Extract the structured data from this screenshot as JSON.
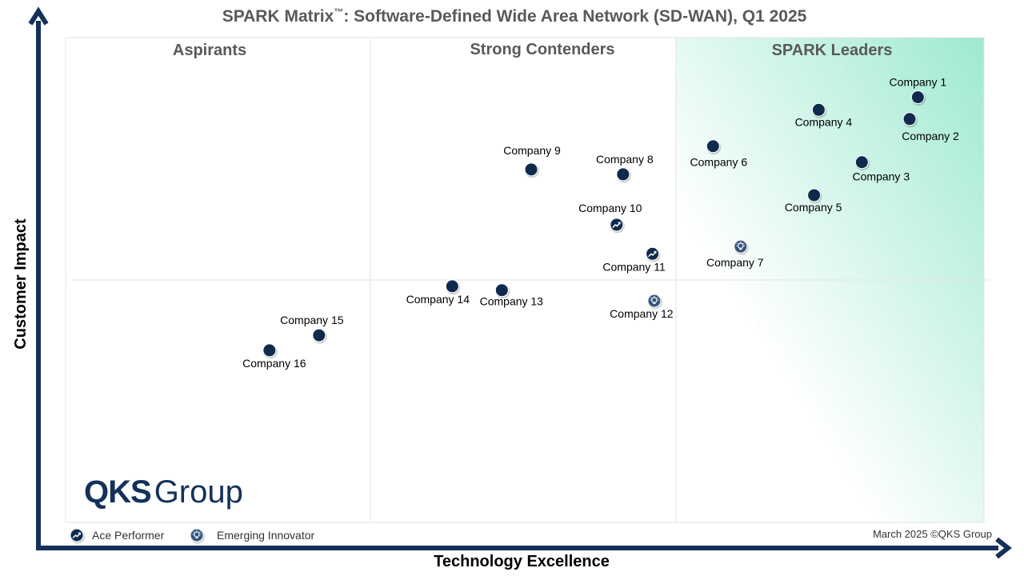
{
  "chart_data": {
    "type": "scatter",
    "title": "SPARK Matrix",
    "title_tm": "™",
    "title_rest": ": Software-Defined Wide Area Network (SD-WAN), Q1 2025",
    "xlabel": "Technology Excellence",
    "ylabel": "Customer Impact",
    "regions": [
      "Aspirants",
      "Strong Contenders",
      "SPARK Leaders"
    ],
    "xlim": [
      0,
      100
    ],
    "ylim": [
      0,
      100
    ],
    "points": [
      {
        "label": "Company 1",
        "x": 92.8,
        "y": 87.7,
        "marker": "dot"
      },
      {
        "label": "Company 2",
        "x": 91.9,
        "y": 83.2,
        "marker": "dot"
      },
      {
        "label": "Company 3",
        "x": 86.7,
        "y": 74.3,
        "marker": "dot"
      },
      {
        "label": "Company 4",
        "x": 82.0,
        "y": 85.1,
        "marker": "dot"
      },
      {
        "label": "Company 5",
        "x": 81.5,
        "y": 67.5,
        "marker": "dot"
      },
      {
        "label": "Company 6",
        "x": 70.5,
        "y": 77.6,
        "marker": "dot"
      },
      {
        "label": "Company 7",
        "x": 73.5,
        "y": 56.9,
        "marker": "emerging"
      },
      {
        "label": "Company 8",
        "x": 60.7,
        "y": 71.8,
        "marker": "dot"
      },
      {
        "label": "Company 9",
        "x": 50.7,
        "y": 72.8,
        "marker": "dot"
      },
      {
        "label": "Company 10",
        "x": 60.0,
        "y": 61.4,
        "marker": "ace"
      },
      {
        "label": "Company 11",
        "x": 63.9,
        "y": 55.4,
        "marker": "ace"
      },
      {
        "label": "Company 12",
        "x": 64.1,
        "y": 45.7,
        "marker": "emerging"
      },
      {
        "label": "Company 13",
        "x": 47.5,
        "y": 47.9,
        "marker": "dot"
      },
      {
        "label": "Company 14",
        "x": 42.1,
        "y": 48.7,
        "marker": "dot"
      },
      {
        "label": "Company 15",
        "x": 27.6,
        "y": 38.6,
        "marker": "dot"
      },
      {
        "label": "Company 16",
        "x": 22.2,
        "y": 35.5,
        "marker": "dot"
      }
    ],
    "legend": [
      {
        "name": "Ace Performer",
        "marker": "ace"
      },
      {
        "name": "Emerging Innovator",
        "marker": "emerging"
      }
    ],
    "legend_position": "bottom-left",
    "grid": true
  },
  "footer": {
    "note": "March 2025 ©QKS Group",
    "logo_bold": "QKS",
    "logo_light": "Group"
  },
  "colors": {
    "axis": "#14315a",
    "marker": "#0f2a4d",
    "leaders_gradient": "#9ee9d2",
    "gridline": "#e3e3e3"
  }
}
